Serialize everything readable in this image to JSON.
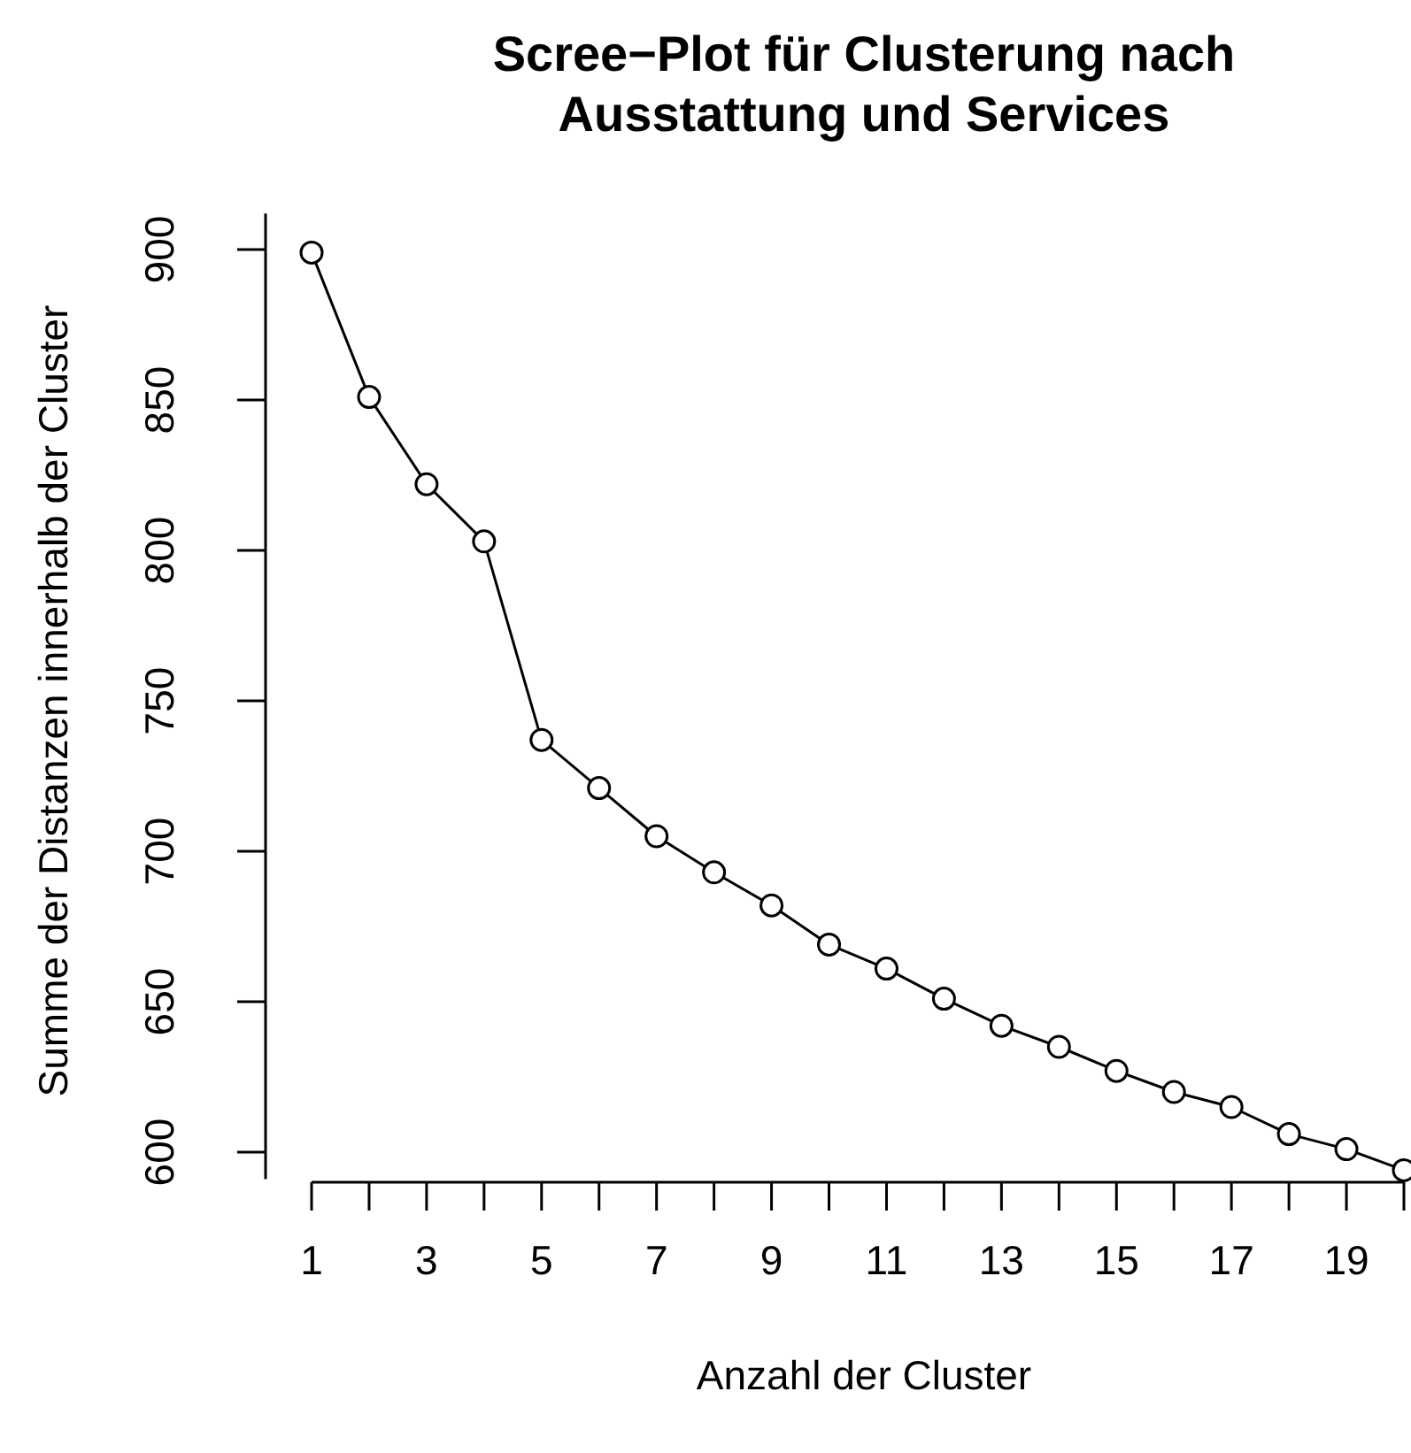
{
  "chart_data": {
    "type": "line",
    "title": "Scree−Plot für Clusterung nach Ausstattung und Services",
    "xlabel": "Anzahl der Cluster",
    "ylabel": "Summe der Distanzen innerhalb der Cluster",
    "x": [
      1,
      2,
      3,
      4,
      5,
      6,
      7,
      8,
      9,
      10,
      11,
      12,
      13,
      14,
      15,
      16,
      17,
      18,
      19,
      20
    ],
    "series": [
      {
        "color": "#000000",
        "values": [
          899,
          851,
          822,
          803,
          737,
          721,
          705,
          693,
          682,
          669,
          661,
          651,
          642,
          635,
          627,
          620,
          615,
          606,
          601,
          594
        ]
      }
    ],
    "xlim": [
      1,
      20
    ],
    "xticks": [
      1,
      {
        "value": 2,
        "label": null
      },
      3,
      {
        "value": 4,
        "label": null
      },
      5,
      {
        "value": 6,
        "label": null
      },
      7,
      {
        "value": 8,
        "label": null
      },
      9,
      {
        "value": 10,
        "label": null
      },
      11,
      {
        "value": 12,
        "label": null
      },
      13,
      {
        "value": 14,
        "label": null
      },
      15,
      {
        "value": 16,
        "label": null
      },
      17,
      {
        "value": 18,
        "label": null
      },
      19,
      {
        "value": 20,
        "label": null
      }
    ],
    "ylim": [
      591,
      912
    ],
    "yticks": [
      600,
      650,
      700,
      750,
      800,
      850,
      900
    ],
    "marker": "circle",
    "line_style": "solid",
    "grid": false
  }
}
